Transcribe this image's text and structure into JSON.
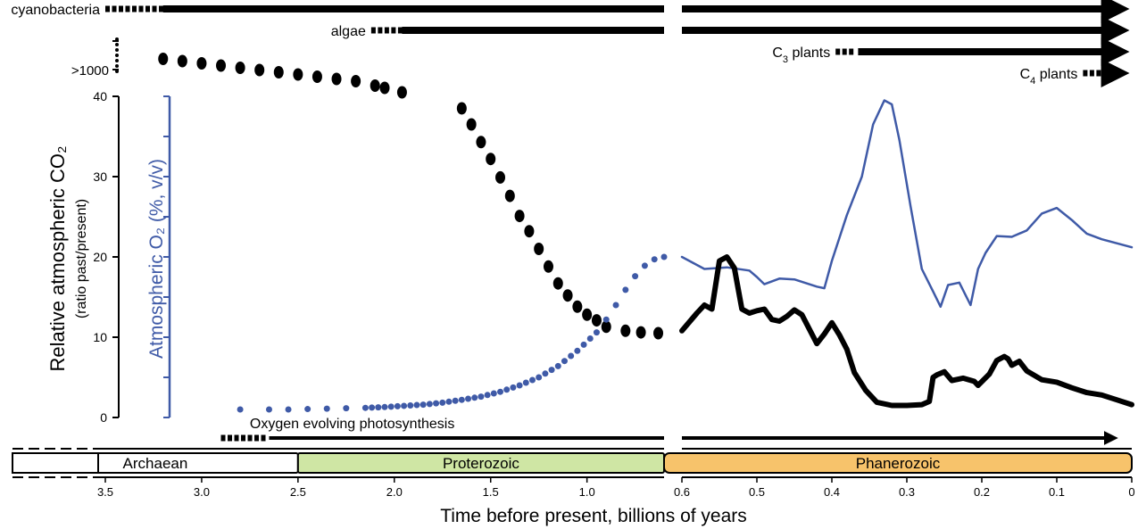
{
  "chart_data": {
    "type": "line",
    "xlabel": "Time before present, billions of years",
    "ylabel": "Relative atmospheric CO₂",
    "ylabel_sub": "(ratio past/present)",
    "y2label": "Atmospheric O₂ (%, v/v)",
    "ylim": [
      0,
      40
    ],
    "y_ticks": [
      "0",
      "10",
      "20",
      "30",
      "40"
    ],
    "y_break_label": ">1000",
    "x_ticks_left": [
      "3.5",
      "3.0",
      "2.5",
      "2.0",
      "1.5",
      "1.0"
    ],
    "x_ticks_right": [
      "0.6",
      "0.5",
      "0.4",
      "0.3",
      "0.2",
      "0.1",
      "0"
    ],
    "axis_break": "time axis broken at 0.6 Ga: left panel 3.5–0.6 Ga, right panel 0.6–0 Ga (expanded)",
    "eras": [
      {
        "name": "Archaean",
        "start": 3.9,
        "end": 2.5,
        "color": "#ffffff"
      },
      {
        "name": "Proterozoic",
        "start": 2.5,
        "end": 0.6,
        "color": "#cfe6a4"
      },
      {
        "name": "Phanerozoic",
        "start": 0.6,
        "end": 0.0,
        "color": "#f7c36b"
      }
    ],
    "life_events": [
      {
        "label": "cyanobacteria",
        "dotted_from": 3.5,
        "solid_from": 3.2
      },
      {
        "label": "algae",
        "dotted_from": 2.12,
        "solid_from": 1.96
      },
      {
        "label": "C",
        "sub": "3",
        "suffix": " plants",
        "dotted_from": 0.395,
        "solid_from": 0.365
      },
      {
        "label": "C",
        "sub": "4",
        "suffix": " plants",
        "dotted_from": 0.065,
        "solid_from": 0.04
      },
      {
        "label": "Oxygen evolving photosynthesis",
        "dotted_from": 2.9,
        "solid_from": 2.65
      }
    ],
    "series": [
      {
        "name": "CO₂ (>1000x, off-scale)",
        "color": "#000000",
        "style": "dots",
        "x": [
          3.2,
          3.1,
          3.0,
          2.9,
          2.8,
          2.7,
          2.6,
          2.5,
          2.4,
          2.3,
          2.2,
          2.1,
          2.05,
          1.96
        ],
        "y": [
          1225,
          1220,
          1215,
          1210,
          1205,
          1200,
          1195,
          1190,
          1185,
          1180,
          1175,
          1165,
          1160,
          1150
        ]
      },
      {
        "name": "CO₂",
        "color": "#000000",
        "style": "dots",
        "x": [
          1.65,
          1.6,
          1.55,
          1.5,
          1.45,
          1.4,
          1.35,
          1.3,
          1.25,
          1.2,
          1.15,
          1.1,
          1.05,
          1.0,
          0.95,
          0.9,
          0.8,
          0.72,
          0.63
        ],
        "y": [
          38.5,
          36.5,
          34.3,
          32.2,
          29.9,
          27.6,
          25.1,
          23.2,
          21,
          18.8,
          16.7,
          15.2,
          13.8,
          12.8,
          12.1,
          11.3,
          10.8,
          10.6,
          10.5
        ]
      },
      {
        "name": "O₂",
        "color": "#3f5aa7",
        "style": "dots",
        "x": [
          2.8,
          2.65,
          2.55,
          2.45,
          2.35,
          2.25,
          2.15,
          2.05,
          1.95,
          1.85,
          1.75,
          1.65,
          1.55,
          1.45,
          1.35,
          1.25,
          1.15,
          1.05,
          0.95,
          0.9,
          0.85,
          0.8,
          0.75,
          0.7,
          0.65,
          0.6
        ],
        "y": [
          1.0,
          1.0,
          1.0,
          1.05,
          1.1,
          1.15,
          1.2,
          1.3,
          1.45,
          1.6,
          1.85,
          2.2,
          2.6,
          3.2,
          4.0,
          5.0,
          6.4,
          8.3,
          10.6,
          12.2,
          14.0,
          15.9,
          17.6,
          18.9,
          19.7,
          20.0
        ]
      },
      {
        "name": "O₂ (Phanerozoic)",
        "color": "#3f5aa7",
        "style": "line",
        "x": [
          0.6,
          0.57,
          0.54,
          0.51,
          0.5,
          0.49,
          0.47,
          0.45,
          0.42,
          0.41,
          0.4,
          0.38,
          0.36,
          0.345,
          0.33,
          0.32,
          0.31,
          0.295,
          0.28,
          0.265,
          0.255,
          0.245,
          0.23,
          0.215,
          0.205,
          0.195,
          0.18,
          0.16,
          0.14,
          0.12,
          0.1,
          0.08,
          0.06,
          0.04,
          0.02,
          0.0
        ],
        "y": [
          20,
          18.5,
          18.7,
          18.3,
          17.5,
          16.6,
          17.3,
          17.2,
          16.3,
          16.1,
          19.5,
          25.2,
          30,
          36.5,
          39.5,
          39,
          34.6,
          26.3,
          18.5,
          15.7,
          13.8,
          16.5,
          16.8,
          14,
          18.5,
          20.5,
          22.6,
          22.5,
          23.3,
          25.4,
          26.1,
          24.6,
          22.9,
          22.2,
          21.7,
          21.2
        ]
      },
      {
        "name": "CO₂ (Phanerozoic)",
        "color": "#000000",
        "style": "line",
        "x": [
          0.6,
          0.58,
          0.57,
          0.56,
          0.55,
          0.54,
          0.53,
          0.52,
          0.51,
          0.5,
          0.49,
          0.48,
          0.47,
          0.46,
          0.45,
          0.44,
          0.43,
          0.42,
          0.41,
          0.4,
          0.39,
          0.38,
          0.37,
          0.355,
          0.34,
          0.32,
          0.3,
          0.28,
          0.27,
          0.265,
          0.26,
          0.25,
          0.24,
          0.225,
          0.21,
          0.205,
          0.19,
          0.18,
          0.17,
          0.165,
          0.16,
          0.15,
          0.14,
          0.12,
          0.1,
          0.08,
          0.06,
          0.04,
          0.02,
          0.0
        ],
        "y": [
          10.8,
          13,
          14,
          13.5,
          19.5,
          20,
          18.6,
          13.5,
          13,
          13.3,
          13.5,
          12.2,
          12,
          12.6,
          13.4,
          12.8,
          11,
          9.2,
          10.4,
          11.8,
          10.3,
          8.5,
          5.6,
          3.4,
          1.9,
          1.5,
          1.5,
          1.6,
          2,
          5,
          5.3,
          5.7,
          4.6,
          4.9,
          4.5,
          4,
          5.4,
          7.1,
          7.6,
          7.3,
          6.5,
          7,
          5.8,
          4.7,
          4.4,
          3.7,
          3.1,
          2.8,
          2.2,
          1.6
        ]
      }
    ]
  }
}
